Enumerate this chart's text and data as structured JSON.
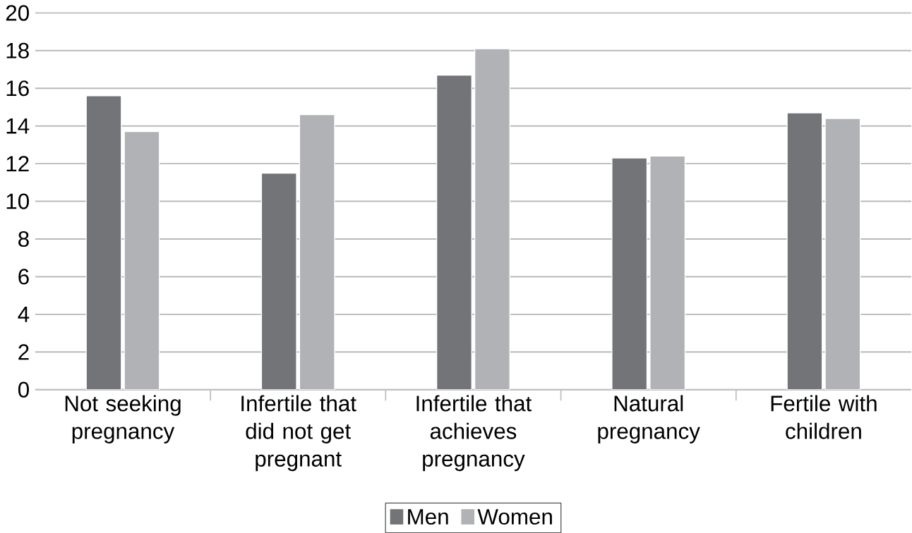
{
  "chart_data": {
    "type": "bar",
    "categories": [
      "Not seeking pregnancy",
      "Infertile that did not get pregnant",
      "Infertile that achieves pregnancy",
      "Natural pregnancy",
      "Fertile with children"
    ],
    "series": [
      {
        "name": "Men",
        "color": "#737478",
        "values": [
          15.6,
          11.5,
          16.7,
          12.3,
          14.7
        ]
      },
      {
        "name": "Women",
        "color": "#b1b2b6",
        "values": [
          13.7,
          14.6,
          18.1,
          12.4,
          14.4
        ]
      }
    ],
    "ylim": [
      0,
      20
    ],
    "yticks": [
      0,
      2,
      4,
      6,
      8,
      10,
      12,
      14,
      16,
      18,
      20
    ],
    "grid": "y",
    "legend": "bottom"
  }
}
